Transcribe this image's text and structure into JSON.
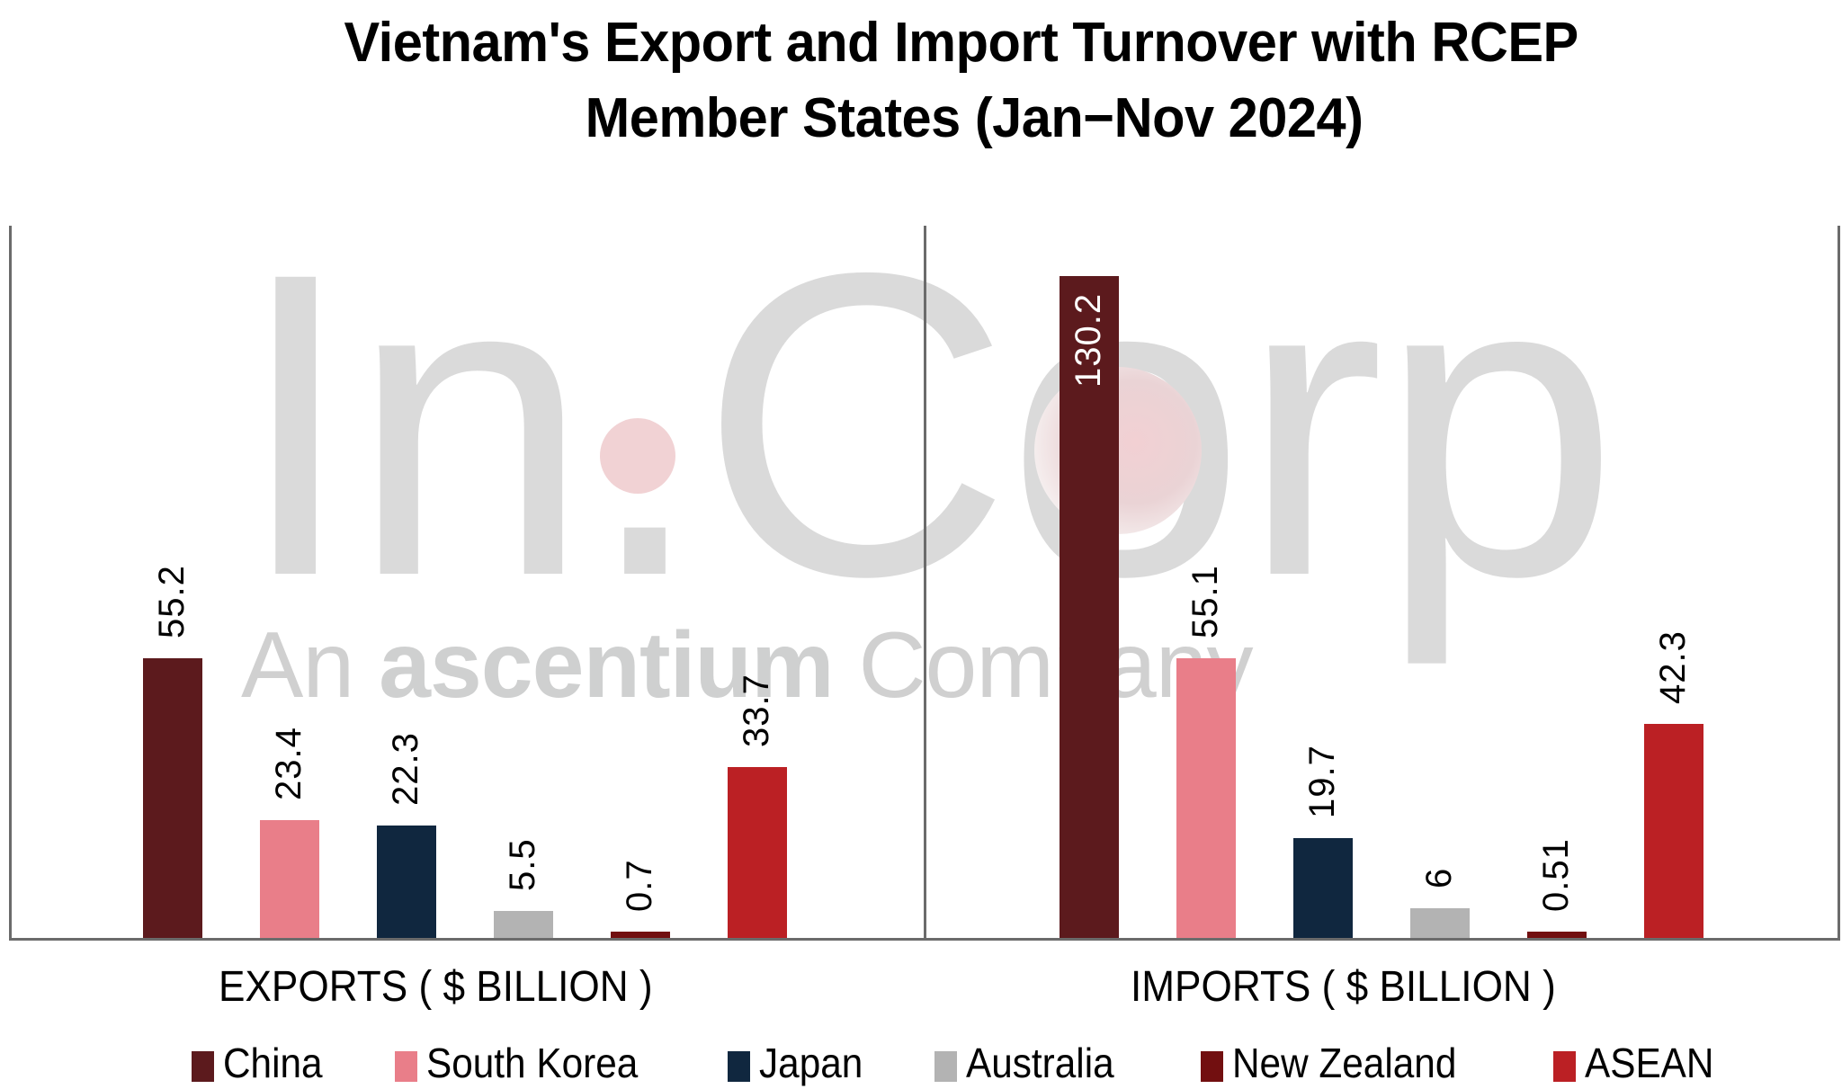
{
  "title": {
    "line1": "Vietnam's Export and Import Turnover with RCEP",
    "line2": "Member States (Jan−Nov 2024)"
  },
  "watermark": {
    "big_text": "In.Corp",
    "tagline_prefix": "An",
    "tagline_brand": "ascentium",
    "tagline_suffix": "Company"
  },
  "colors": {
    "China": "#5c1a1d",
    "South Korea": "#e97e89",
    "Japan": "#10273f",
    "Australia": "#b3b3b3",
    "New Zealand": "#720f10",
    "ASEAN": "#bb2024",
    "frame": "#6b6b6b",
    "watermark": "#dadada"
  },
  "legend": [
    {
      "label": "China",
      "color": "#5c1a1d"
    },
    {
      "label": "South Korea",
      "color": "#e97e89"
    },
    {
      "label": "Japan",
      "color": "#10273f"
    },
    {
      "label": "Australia",
      "color": "#b3b3b3"
    },
    {
      "label": "New Zealand",
      "color": "#720f10"
    },
    {
      "label": "ASEAN",
      "color": "#bb2024"
    }
  ],
  "chart_data": {
    "type": "bar",
    "title": "Vietnam's Export and Import Turnover with RCEP Member States (Jan−Nov 2024)",
    "categories": [
      "EXPORTS ( $ BILLION )",
      "IMPORTS ( $ BILLION )"
    ],
    "series": [
      {
        "name": "China",
        "values": [
          55.2,
          130.2
        ],
        "labels": [
          "55.2",
          "130.2"
        ]
      },
      {
        "name": "South Korea",
        "values": [
          23.4,
          55.1
        ],
        "labels": [
          "23.4",
          "55.1"
        ]
      },
      {
        "name": "Japan",
        "values": [
          22.3,
          19.7
        ],
        "labels": [
          "22.3",
          "19.7"
        ]
      },
      {
        "name": "Australia",
        "values": [
          5.5,
          6
        ],
        "labels": [
          "5.5",
          "6"
        ]
      },
      {
        "name": "New Zealand",
        "values": [
          0.7,
          0.51
        ],
        "labels": [
          "0.7",
          "0.51"
        ]
      },
      {
        "name": "ASEAN",
        "values": [
          33.7,
          42.3
        ],
        "labels": [
          "33.7",
          "42.3"
        ]
      }
    ],
    "xlabel": "",
    "ylabel": "",
    "grid": false,
    "y_axis_visible": false,
    "data_labels": "rotated -90, above bars (inside bar for max value)",
    "legend_position": "bottom"
  }
}
